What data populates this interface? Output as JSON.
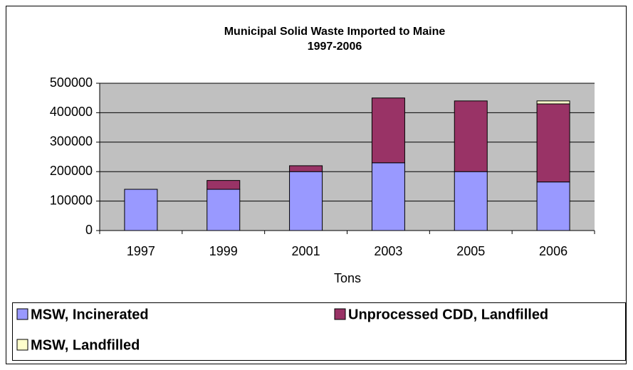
{
  "chart_data": {
    "type": "stacked_bar",
    "title": "Municipal Solid Waste Imported to Maine",
    "subtitle": "1997-2006",
    "x_label": "Tons",
    "categories": [
      "1997",
      "1999",
      "2001",
      "2003",
      "2005",
      "2006"
    ],
    "series": [
      {
        "name": "MSW, Incinerated",
        "color": "#9999ff",
        "values": [
          140000,
          140000,
          200000,
          230000,
          200000,
          165000
        ]
      },
      {
        "name": "Unprocessed CDD, Landfilled",
        "color": "#993366",
        "values": [
          0,
          30000,
          20000,
          220000,
          240000,
          265000
        ]
      },
      {
        "name": "MSW, Landfilled",
        "color": "#ffffcc",
        "values": [
          0,
          0,
          0,
          0,
          0,
          10000
        ]
      }
    ],
    "ylim": [
      0,
      500000
    ],
    "yticks": [
      0,
      100000,
      200000,
      300000,
      400000,
      500000
    ],
    "grid": true,
    "legend": "bottom",
    "plot_background": "#c0c0c0"
  }
}
